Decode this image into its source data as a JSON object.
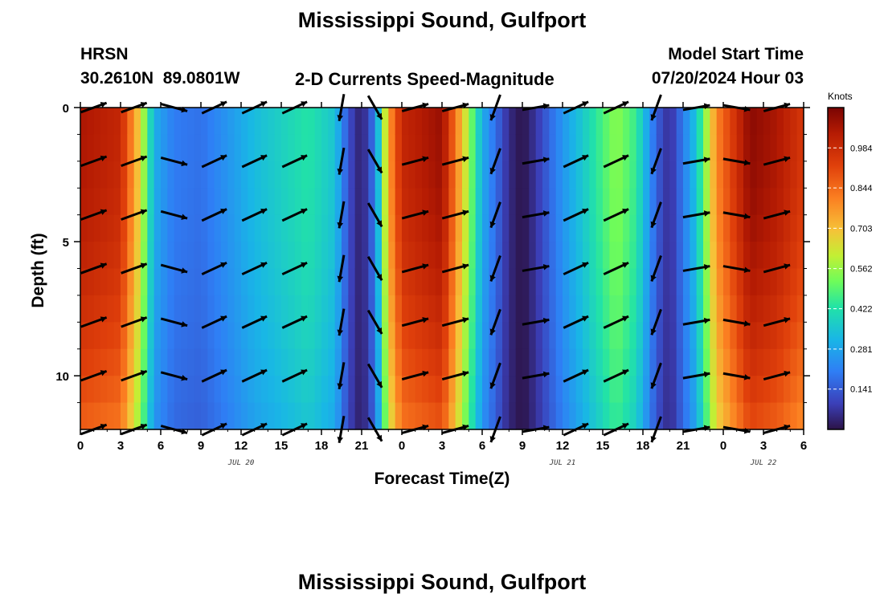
{
  "chart_data": {
    "type": "heatmap",
    "title": "Mississippi Sound, Gulfport",
    "station": "HRSN",
    "coordinates": "30.2610N  89.0801W",
    "subtitle": "2-D Currents Speed-Magnitude",
    "model_start_label": "Model Start Time",
    "model_start_value": "07/20/2024 Hour 03",
    "xlabel": "Forecast Time(Z)",
    "ylabel": "Depth (ft)",
    "x_tick_labels": [
      "0",
      "3",
      "6",
      "9",
      "12",
      "15",
      "18",
      "21",
      "0",
      "3",
      "6",
      "9",
      "12",
      "15",
      "18",
      "21",
      "0",
      "3",
      "6"
    ],
    "y_tick_labels": [
      "0",
      "5",
      "10"
    ],
    "ylim": [
      0,
      12
    ],
    "date_labels": [
      {
        "label": "JUL 20",
        "hour": 12
      },
      {
        "label": "JUL 21",
        "hour": 36
      },
      {
        "label": "JUL 22",
        "hour": 51
      }
    ],
    "colorbar": {
      "unit": "Knots",
      "ticks": [
        "0.984",
        "0.844",
        "0.703",
        "0.562",
        "0.422",
        "0.281",
        "0.141"
      ],
      "min": 0.0,
      "max": 1.125
    },
    "time_hours_start": 0,
    "time_hours_end": 54,
    "speed_profile_knots": [
      {
        "hour": 0,
        "speed": 1.05
      },
      {
        "hour": 3,
        "speed": 1.0
      },
      {
        "hour": 4.5,
        "speed": 0.65
      },
      {
        "hour": 5.5,
        "speed": 0.3
      },
      {
        "hour": 7,
        "speed": 0.2
      },
      {
        "hour": 9,
        "speed": 0.18
      },
      {
        "hour": 11,
        "speed": 0.25
      },
      {
        "hour": 13,
        "speed": 0.33
      },
      {
        "hour": 15,
        "speed": 0.38
      },
      {
        "hour": 17,
        "speed": 0.43
      },
      {
        "hour": 19,
        "speed": 0.35
      },
      {
        "hour": 20,
        "speed": 0.12
      },
      {
        "hour": 21,
        "speed": 0.02
      },
      {
        "hour": 22,
        "speed": 0.2
      },
      {
        "hour": 23,
        "speed": 0.75
      },
      {
        "hour": 24,
        "speed": 1.0
      },
      {
        "hour": 27,
        "speed": 1.08
      },
      {
        "hour": 28.5,
        "speed": 0.7
      },
      {
        "hour": 30,
        "speed": 0.3
      },
      {
        "hour": 32,
        "speed": 0.05
      },
      {
        "hour": 33,
        "speed": 0.0
      },
      {
        "hour": 34,
        "speed": 0.07
      },
      {
        "hour": 36,
        "speed": 0.25
      },
      {
        "hour": 38,
        "speed": 0.4
      },
      {
        "hour": 40,
        "speed": 0.55
      },
      {
        "hour": 41.5,
        "speed": 0.45
      },
      {
        "hour": 43,
        "speed": 0.15
      },
      {
        "hour": 44,
        "speed": 0.05
      },
      {
        "hour": 46,
        "speed": 0.35
      },
      {
        "hour": 47.5,
        "speed": 0.8
      },
      {
        "hour": 50,
        "speed": 1.1
      },
      {
        "hour": 52,
        "speed": 1.05
      },
      {
        "hour": 54,
        "speed": 0.95
      }
    ],
    "vector_columns": [
      {
        "hour": 1,
        "dir_deg": 20
      },
      {
        "hour": 4,
        "dir_deg": 20
      },
      {
        "hour": 7,
        "dir_deg": -15
      },
      {
        "hour": 10,
        "dir_deg": 25
      },
      {
        "hour": 13,
        "dir_deg": 25
      },
      {
        "hour": 16,
        "dir_deg": 25
      },
      {
        "hour": 19.5,
        "dir_deg": -100
      },
      {
        "hour": 22,
        "dir_deg": -60
      },
      {
        "hour": 25,
        "dir_deg": 15
      },
      {
        "hour": 28,
        "dir_deg": 15
      },
      {
        "hour": 31,
        "dir_deg": -110
      },
      {
        "hour": 34,
        "dir_deg": 10
      },
      {
        "hour": 37,
        "dir_deg": 25
      },
      {
        "hour": 40,
        "dir_deg": 25
      },
      {
        "hour": 43,
        "dir_deg": -110
      },
      {
        "hour": 46,
        "dir_deg": 10
      },
      {
        "hour": 49,
        "dir_deg": -10
      },
      {
        "hour": 52,
        "dir_deg": 15
      }
    ],
    "vector_depths_ft": [
      0,
      2,
      4,
      6,
      8,
      10,
      12
    ]
  }
}
